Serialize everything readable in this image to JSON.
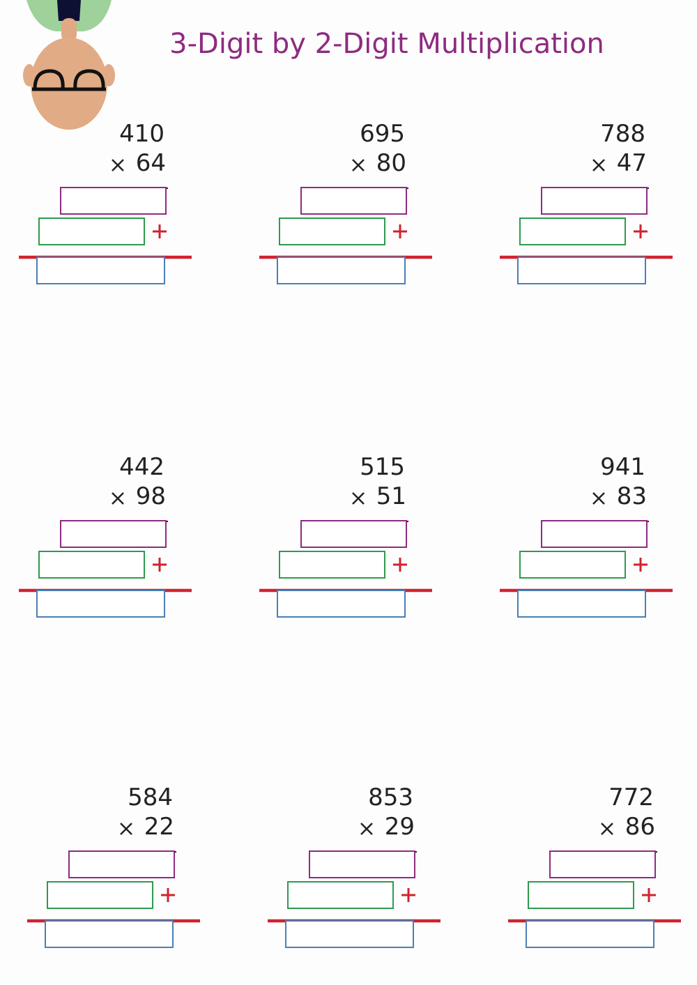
{
  "header": {
    "title": "3-Digit by 2-Digit Multiplication"
  },
  "problems": [
    {
      "multiplicand": 410,
      "multiplier": 64
    },
    {
      "multiplicand": 695,
      "multiplier": 80
    },
    {
      "multiplicand": 788,
      "multiplier": 47
    },
    {
      "multiplicand": 442,
      "multiplier": 98
    },
    {
      "multiplicand": 515,
      "multiplier": 51
    },
    {
      "multiplicand": 941,
      "multiplier": 83
    },
    {
      "multiplicand": 584,
      "multiplier": 22
    },
    {
      "multiplicand": 853,
      "multiplier": 29
    },
    {
      "multiplicand": 772,
      "multiplier": 86
    }
  ]
}
